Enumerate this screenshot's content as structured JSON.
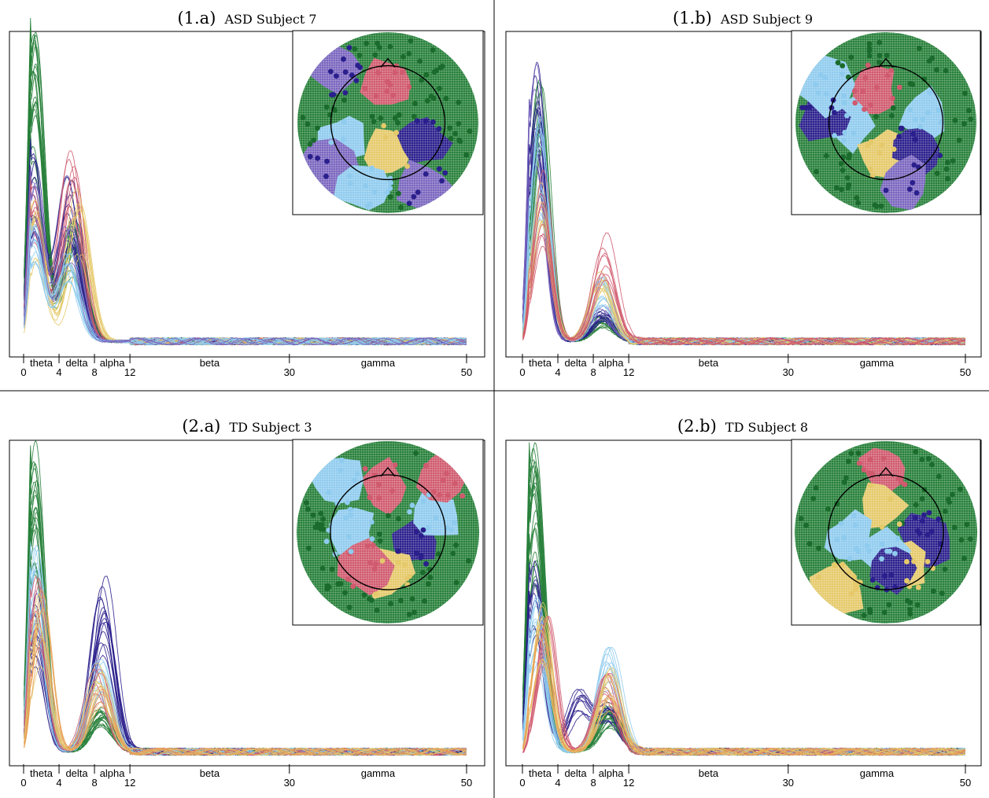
{
  "colors": {
    "red": "#d05a6e",
    "lightblue": "#8fcbee",
    "navy": "#2a1f8c",
    "yellow": "#e5c96a",
    "green": "#27803a",
    "purple": "#7a66bf",
    "orange": "#e8a155"
  },
  "chart_data": [
    {
      "type": "line",
      "label": "(1.a)",
      "title": "ASD Subject 7",
      "x_range": [
        0,
        50
      ],
      "xticks": [
        0,
        4,
        8,
        12,
        30,
        50
      ],
      "bands": [
        "theta",
        "delta",
        "alpha",
        "beta",
        "gamma"
      ],
      "series": [
        {
          "color": "green",
          "peaks": [
            [
              1.2,
              0.97
            ],
            [
              5.5,
              0.38
            ]
          ],
          "count": 20
        },
        {
          "color": "navy",
          "peaks": [
            [
              1.2,
              0.62
            ],
            [
              5.2,
              0.55
            ]
          ],
          "count": 14
        },
        {
          "color": "red",
          "peaks": [
            [
              1.2,
              0.5
            ],
            [
              5.5,
              0.62
            ]
          ],
          "count": 8
        },
        {
          "color": "yellow",
          "peaks": [
            [
              1.4,
              0.45
            ],
            [
              6.2,
              0.48
            ]
          ],
          "count": 8
        },
        {
          "color": "lightblue",
          "peaks": [
            [
              1.2,
              0.42
            ],
            [
              5.0,
              0.32
            ]
          ],
          "count": 12
        },
        {
          "color": "purple",
          "peaks": [
            [
              1.2,
              0.55
            ],
            [
              5.0,
              0.4
            ]
          ],
          "count": 4
        }
      ]
    },
    {
      "type": "line",
      "label": "(1.b)",
      "title": "ASD Subject 9",
      "x_range": [
        0,
        50
      ],
      "xticks": [
        0,
        4,
        8,
        12,
        30,
        50
      ],
      "bands": [
        "theta",
        "delta",
        "alpha",
        "beta",
        "gamma"
      ],
      "series": [
        {
          "color": "green",
          "peaks": [
            [
              2.0,
              0.82
            ],
            [
              9.0,
              0.08
            ]
          ],
          "count": 20
        },
        {
          "color": "navy",
          "peaks": [
            [
              1.6,
              0.88
            ],
            [
              9.0,
              0.1
            ]
          ],
          "count": 12
        },
        {
          "color": "purple",
          "peaks": [
            [
              1.5,
              0.92
            ],
            [
              9.0,
              0.12
            ]
          ],
          "count": 4
        },
        {
          "color": "lightblue",
          "peaks": [
            [
              2.0,
              0.7
            ],
            [
              9.0,
              0.2
            ]
          ],
          "count": 14
        },
        {
          "color": "yellow",
          "peaks": [
            [
              2.2,
              0.5
            ],
            [
              9.0,
              0.22
            ]
          ],
          "count": 8
        },
        {
          "color": "red",
          "peaks": [
            [
              2.2,
              0.55
            ],
            [
              9.2,
              0.35
            ]
          ],
          "count": 8
        }
      ]
    },
    {
      "type": "line",
      "label": "(2.a)",
      "title": "TD Subject 3",
      "x_range": [
        0,
        50
      ],
      "xticks": [
        0,
        4,
        8,
        12,
        30,
        50
      ],
      "bands": [
        "theta",
        "delta",
        "alpha",
        "beta",
        "gamma"
      ],
      "series": [
        {
          "color": "green",
          "peaks": [
            [
              1.3,
              0.97
            ],
            [
              8.8,
              0.14
            ]
          ],
          "count": 20
        },
        {
          "color": "navy",
          "peaks": [
            [
              1.3,
              0.5
            ],
            [
              8.9,
              0.56
            ]
          ],
          "count": 14
        },
        {
          "color": "lightblue",
          "peaks": [
            [
              1.4,
              0.68
            ],
            [
              8.6,
              0.3
            ]
          ],
          "count": 12
        },
        {
          "color": "red",
          "peaks": [
            [
              1.6,
              0.55
            ],
            [
              8.4,
              0.26
            ]
          ],
          "count": 6
        },
        {
          "color": "yellow",
          "peaks": [
            [
              1.8,
              0.5
            ],
            [
              8.5,
              0.28
            ]
          ],
          "count": 6
        },
        {
          "color": "orange",
          "peaks": [
            [
              2.0,
              0.55
            ],
            [
              8.5,
              0.22
            ]
          ],
          "count": 4
        }
      ]
    },
    {
      "type": "line",
      "label": "(2.b)",
      "title": "TD Subject 8",
      "x_range": [
        0,
        50
      ],
      "xticks": [
        0,
        4,
        8,
        12,
        30,
        50
      ],
      "bands": [
        "theta",
        "delta",
        "alpha",
        "beta",
        "gamma"
      ],
      "series": [
        {
          "color": "green",
          "peaks": [
            [
              1.4,
              0.96
            ],
            [
              9.8,
              0.14
            ]
          ],
          "count": 22
        },
        {
          "color": "navy",
          "peaks": [
            [
              1.4,
              0.62
            ],
            [
              6.5,
              0.2
            ],
            [
              9.8,
              0.15
            ]
          ],
          "count": 10
        },
        {
          "color": "lightblue",
          "peaks": [
            [
              1.6,
              0.5
            ],
            [
              9.8,
              0.34
            ]
          ],
          "count": 12
        },
        {
          "color": "red",
          "peaks": [
            [
              2.8,
              0.45
            ],
            [
              9.6,
              0.26
            ]
          ],
          "count": 8
        },
        {
          "color": "yellow",
          "peaks": [
            [
              2.2,
              0.5
            ],
            [
              9.8,
              0.28
            ]
          ],
          "count": 8
        },
        {
          "color": "orange",
          "peaks": [
            [
              2.0,
              0.45
            ],
            [
              9.5,
              0.2
            ]
          ],
          "count": 4
        }
      ]
    }
  ],
  "topo_maps": [
    {
      "regions": [
        {
          "color": "red",
          "angle": 90,
          "r": 0.45
        },
        {
          "color": "lightblue",
          "angle": 200,
          "r": 0.5
        },
        {
          "color": "yellow",
          "angle": 270,
          "r": 0.3
        },
        {
          "color": "navy",
          "angle": 330,
          "r": 0.45
        },
        {
          "color": "purple",
          "angle": 135,
          "r": 0.85
        },
        {
          "color": "purple",
          "angle": 220,
          "r": 0.85
        },
        {
          "color": "purple",
          "angle": 300,
          "r": 0.85
        },
        {
          "color": "lightblue",
          "angle": 250,
          "r": 0.75
        }
      ]
    },
    {
      "regions": [
        {
          "color": "red",
          "angle": 110,
          "r": 0.4
        },
        {
          "color": "lightblue",
          "angle": 10,
          "r": 0.45
        },
        {
          "color": "lightblue",
          "angle": 185,
          "r": 0.42
        },
        {
          "color": "yellow",
          "angle": 265,
          "r": 0.35
        },
        {
          "color": "navy",
          "angle": 320,
          "r": 0.45
        },
        {
          "color": "navy",
          "angle": 175,
          "r": 0.7
        },
        {
          "color": "lightblue",
          "angle": 150,
          "r": 0.85
        },
        {
          "color": "purple",
          "angle": 290,
          "r": 0.68
        }
      ]
    },
    {
      "regions": [
        {
          "color": "red",
          "angle": 95,
          "r": 0.5
        },
        {
          "color": "lightblue",
          "angle": 180,
          "r": 0.4
        },
        {
          "color": "navy",
          "angle": 340,
          "r": 0.3
        },
        {
          "color": "yellow",
          "angle": 270,
          "r": 0.45
        },
        {
          "color": "lightblue",
          "angle": 20,
          "r": 0.55
        },
        {
          "color": "lightblue",
          "angle": 135,
          "r": 0.8
        },
        {
          "color": "red",
          "angle": 45,
          "r": 0.85
        },
        {
          "color": "red",
          "angle": 235,
          "r": 0.45
        }
      ]
    },
    {
      "regions": [
        {
          "color": "red",
          "angle": 90,
          "r": 0.7
        },
        {
          "color": "yellow",
          "angle": 100,
          "r": 0.3
        },
        {
          "color": "lightblue",
          "angle": 190,
          "r": 0.4
        },
        {
          "color": "navy",
          "angle": 350,
          "r": 0.45
        },
        {
          "color": "yellow",
          "angle": 300,
          "r": 0.45
        },
        {
          "color": "yellow",
          "angle": 230,
          "r": 0.8
        },
        {
          "color": "lightblue",
          "angle": 260,
          "r": 0.2
        },
        {
          "color": "navy",
          "angle": 280,
          "r": 0.4
        }
      ]
    }
  ]
}
